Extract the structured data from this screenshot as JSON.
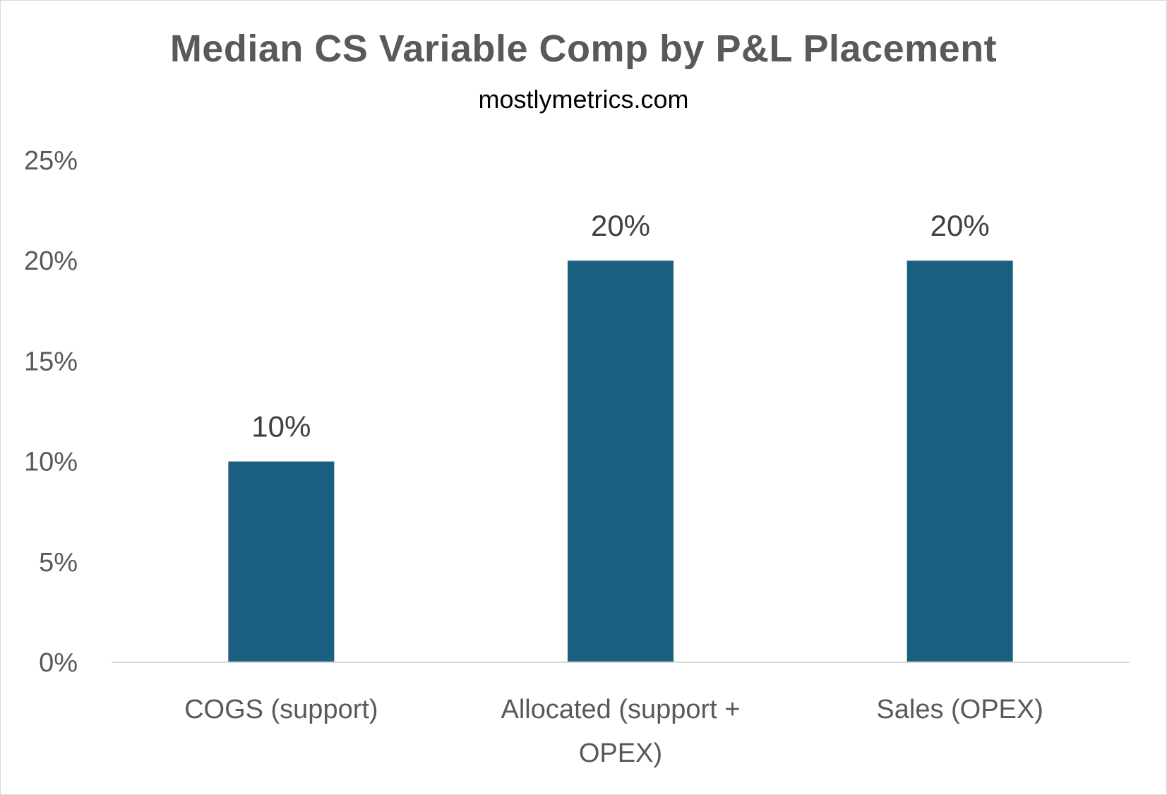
{
  "chart_data": {
    "type": "bar",
    "title": "Median CS Variable Comp by P&L Placement",
    "subtitle": "mostlymetrics.com",
    "categories": [
      "COGS (support)",
      "Allocated (support + OPEX)",
      "Sales (OPEX)"
    ],
    "category_lines": [
      [
        "COGS (support)"
      ],
      [
        "Allocated (support +",
        "OPEX)"
      ],
      [
        "Sales (OPEX)"
      ]
    ],
    "values": [
      10,
      20,
      20
    ],
    "data_labels": [
      "10%",
      "20%",
      "20%"
    ],
    "y_ticks": [
      0,
      5,
      10,
      15,
      20,
      25
    ],
    "y_tick_labels": [
      "0%",
      "5%",
      "10%",
      "15%",
      "20%",
      "25%"
    ],
    "ylim": [
      0,
      25
    ],
    "xlabel": "",
    "ylabel": "",
    "grid": false,
    "legend": "none",
    "bar_color": "#1a5f80",
    "axis_color": "#d9d9d9"
  }
}
